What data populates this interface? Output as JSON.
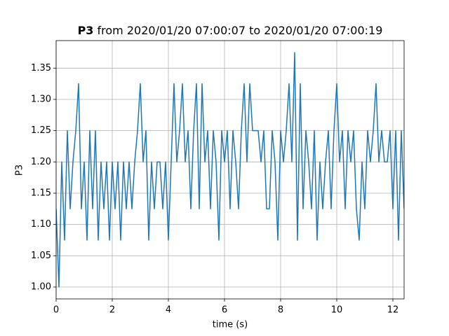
{
  "chart_data": {
    "type": "line",
    "title_bold": "P3",
    "title": "from 2020/01/20 07:00:07 to 2020/01/20 07:00:19",
    "xlabel": "time (s)",
    "ylabel": "P3",
    "color": "#1f77b4",
    "grid": true,
    "xlim": [
      0,
      12.4
    ],
    "ylim": [
      0.981,
      1.394
    ],
    "xticks": [
      0,
      2,
      4,
      6,
      8,
      10,
      12
    ],
    "yticks": [
      {
        "value": 1,
        "label": "1.00"
      },
      1.05,
      {
        "value": 1.1,
        "label": "1.10"
      },
      1.15,
      {
        "value": 1.2,
        "label": "1.20"
      },
      1.25,
      {
        "value": 1.3,
        "label": "1.30"
      },
      1.35
    ],
    "x": [
      0,
      0.1,
      0.2,
      0.3,
      0.4,
      0.5,
      0.6,
      0.7,
      0.8,
      0.9,
      1,
      1.1,
      1.2,
      1.3,
      1.4,
      1.5,
      1.6,
      1.7,
      1.8,
      1.9,
      2,
      2.1,
      2.2,
      2.3,
      2.4,
      2.5,
      2.6,
      2.7,
      2.8,
      2.9,
      3,
      3.1,
      3.2,
      3.3,
      3.4,
      3.5,
      3.6,
      3.7,
      3.8,
      3.9,
      4,
      4.1,
      4.2,
      4.3,
      4.4,
      4.5,
      4.6,
      4.7,
      4.8,
      4.9,
      5,
      5.1,
      5.2,
      5.3,
      5.4,
      5.5,
      5.6,
      5.7,
      5.8,
      5.9,
      6,
      6.1,
      6.2,
      6.3,
      6.4,
      6.5,
      6.6,
      6.7,
      6.8,
      6.9,
      7,
      7.1,
      7.2,
      7.3,
      7.4,
      7.5,
      7.6,
      7.7,
      7.8,
      7.9,
      8,
      8.1,
      8.2,
      8.3,
      8.4,
      8.5,
      8.6,
      8.7,
      8.8,
      8.9,
      9,
      9.1,
      9.2,
      9.3,
      9.4,
      9.5,
      9.6,
      9.7,
      9.8,
      9.9,
      10,
      10.1,
      10.2,
      10.3,
      10.4,
      10.5,
      10.6,
      10.7,
      10.8,
      10.9,
      11,
      11.1,
      11.2,
      11.3,
      11.4,
      11.5,
      11.6,
      11.7,
      11.8,
      11.9,
      12,
      12.1,
      12.2,
      12.3,
      12.4
    ],
    "values": [
      1.125,
      1.0,
      1.2,
      1.075,
      1.25,
      1.125,
      1.2,
      1.25,
      1.325,
      1.125,
      1.2,
      1.075,
      1.25,
      1.125,
      1.25,
      1.075,
      1.2,
      1.125,
      1.2,
      1.075,
      1.2,
      1.125,
      1.2,
      1.075,
      1.2,
      1.125,
      1.2,
      1.125,
      1.2,
      1.25,
      1.325,
      1.2,
      1.25,
      1.075,
      1.2,
      1.125,
      1.2,
      1.2,
      1.125,
      1.2,
      1.075,
      1.2,
      1.325,
      1.2,
      1.25,
      1.325,
      1.2,
      1.25,
      1.125,
      1.25,
      1.325,
      1.125,
      1.325,
      1.2,
      1.25,
      1.125,
      1.25,
      1.2,
      1.075,
      1.25,
      1.2,
      1.25,
      1.125,
      1.25,
      1.2,
      1.125,
      1.25,
      1.325,
      1.2,
      1.325,
      1.25,
      1.25,
      1.25,
      1.2,
      1.25,
      1.125,
      1.125,
      1.25,
      1.2,
      1.075,
      1.25,
      1.2,
      1.25,
      1.325,
      1.2,
      1.375,
      1.075,
      1.325,
      1.125,
      1.25,
      1.2,
      1.125,
      1.25,
      1.075,
      1.2,
      1.125,
      1.2,
      1.25,
      1.125,
      1.25,
      1.325,
      1.2,
      1.25,
      1.125,
      1.25,
      1.2,
      1.25,
      1.125,
      1.075,
      1.2,
      1.125,
      1.25,
      1.2,
      1.25,
      1.325,
      1.2,
      1.25,
      1.2,
      1.2,
      1.25,
      1.125,
      1.25,
      1.075,
      1.25,
      1.125
    ]
  }
}
